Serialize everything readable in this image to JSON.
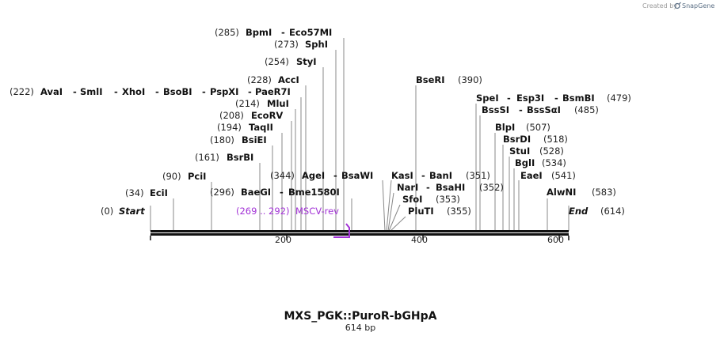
{
  "credit": {
    "created_by": "Created by",
    "brand": "SnapGene"
  },
  "sequence": {
    "name": "MXS_PGK::PuroR-bGHpA",
    "length_label": "614 bp",
    "length": 614
  },
  "scale_ticks": [
    "200",
    "400",
    "600"
  ],
  "ends": [
    {
      "label": "Start",
      "pos": "(0)"
    },
    {
      "label": "End",
      "pos": "(614)"
    }
  ],
  "primer": {
    "range": "(269 .. 292)",
    "name": "MSCV-rev",
    "color": "#a232d6"
  },
  "sites": [
    {
      "names": [
        "EciI"
      ],
      "pos": "(34)"
    },
    {
      "names": [
        "PciI"
      ],
      "pos": "(90)"
    },
    {
      "names": [
        "BsrBI"
      ],
      "pos": "(161)"
    },
    {
      "names": [
        "BsiEI"
      ],
      "pos": "(180)"
    },
    {
      "names": [
        "TaqII"
      ],
      "pos": "(194)"
    },
    {
      "names": [
        "EcoRV"
      ],
      "pos": "(208)"
    },
    {
      "names": [
        "MluI"
      ],
      "pos": "(214)"
    },
    {
      "names": [
        "AvaI",
        "SmlI",
        "XhoI",
        "BsoBI",
        "PspXI",
        "PaeR7I"
      ],
      "pos": "(222)"
    },
    {
      "names": [
        "AccI"
      ],
      "pos": "(228)"
    },
    {
      "names": [
        "StyI"
      ],
      "pos": "(254)"
    },
    {
      "names": [
        "SphI"
      ],
      "pos": "(273)"
    },
    {
      "names": [
        "BpmI",
        "Eco57MI"
      ],
      "pos": "(285)"
    },
    {
      "names": [
        "BaeGI",
        "Bme1580I"
      ],
      "pos": "(296)"
    },
    {
      "names": [
        "AgeI",
        "BsaWI"
      ],
      "pos": "(344)"
    },
    {
      "names": [
        "KasI",
        "BanI"
      ],
      "pos": "(351)"
    },
    {
      "names": [
        "NarI",
        "BsaHI"
      ],
      "pos": "(352)"
    },
    {
      "names": [
        "SfoI"
      ],
      "pos": "(353)"
    },
    {
      "names": [
        "PluTI"
      ],
      "pos": "(355)"
    },
    {
      "names": [
        "BseRI"
      ],
      "pos": "(390)"
    },
    {
      "names": [
        "SpeI",
        "Esp3I",
        "BsmBI"
      ],
      "pos": "(479)"
    },
    {
      "names": [
        "BssSI",
        "BssSαI"
      ],
      "pos": "(485)"
    },
    {
      "names": [
        "BlpI"
      ],
      "pos": "(507)"
    },
    {
      "names": [
        "BsrDI"
      ],
      "pos": "(518)"
    },
    {
      "names": [
        "StuI"
      ],
      "pos": "(528)"
    },
    {
      "names": [
        "BglI"
      ],
      "pos": "(534)"
    },
    {
      "names": [
        "EaeI"
      ],
      "pos": "(541)"
    },
    {
      "names": [
        "AlwNI"
      ],
      "pos": "(583)"
    }
  ]
}
